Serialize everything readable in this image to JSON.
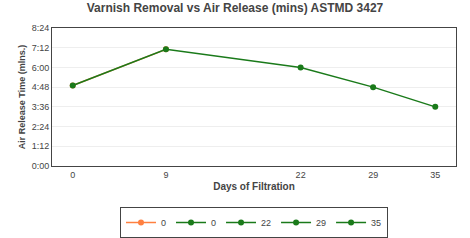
{
  "chart_data": {
    "type": "line",
    "title": "Varnish Removal vs Air Release (mins) ASTMD 3427",
    "xlabel": "Days of Filtration",
    "ylabel": "Air Release Time (mlns.)",
    "x": [
      0,
      9,
      22,
      29,
      35
    ],
    "series": [
      {
        "name": "0",
        "color": "#FF8040",
        "values": [
          294,
          426,
          null,
          null,
          null
        ]
      },
      {
        "name": "0",
        "color": "#1a7a1a",
        "values": [
          294,
          426,
          360,
          288,
          216
        ]
      },
      {
        "name": "22",
        "color": "#1a7a1a",
        "values": [
          null,
          null,
          null,
          null,
          null
        ]
      },
      {
        "name": "29",
        "color": "#1a7a1a",
        "values": [
          null,
          null,
          null,
          null,
          null
        ]
      },
      {
        "name": "35",
        "color": "#1a7a1a",
        "values": [
          null,
          null,
          null,
          null,
          null
        ]
      }
    ],
    "xlim": [
      -2,
      37
    ],
    "xticks": [
      0,
      9,
      22,
      29,
      35
    ],
    "ylim": [
      0,
      504
    ],
    "yticks": [
      {
        "value": 0,
        "label": "0:00"
      },
      {
        "value": 72,
        "label": "1:12"
      },
      {
        "value": 144,
        "label": "2:24"
      },
      {
        "value": 216,
        "label": "3:36"
      },
      {
        "value": 288,
        "label": "4:48"
      },
      {
        "value": 360,
        "label": "6:00"
      },
      {
        "value": 432,
        "label": "7:12"
      },
      {
        "value": 504,
        "label": "8:24"
      }
    ],
    "grid": "y",
    "legend": "bottom",
    "marker": "circle",
    "line_style": "solid"
  }
}
